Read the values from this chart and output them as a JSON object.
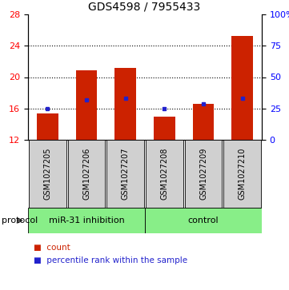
{
  "title": "GDS4598 / 7955433",
  "samples": [
    "GSM1027205",
    "GSM1027206",
    "GSM1027207",
    "GSM1027208",
    "GSM1027209",
    "GSM1027210"
  ],
  "count_values": [
    15.4,
    20.85,
    21.2,
    15.0,
    16.55,
    25.2
  ],
  "percentile_values": [
    16.0,
    17.05,
    17.3,
    15.95,
    16.55,
    17.3
  ],
  "bar_bottom": 12,
  "ylim_left": [
    12,
    28
  ],
  "ylim_right": [
    0,
    100
  ],
  "yticks_left": [
    12,
    16,
    20,
    24,
    28
  ],
  "yticks_right": [
    0,
    25,
    50,
    75,
    100
  ],
  "ytick_labels_right": [
    "0",
    "25",
    "50",
    "75",
    "100%"
  ],
  "bar_color": "#cc2200",
  "dot_color": "#2222cc",
  "gridline_y": [
    16,
    20,
    24
  ],
  "group1_label": "miR-31 inhibition",
  "group2_label": "control",
  "group_color": "#88ee88",
  "sample_box_color": "#d0d0d0",
  "protocol_label": "protocol",
  "legend_count_label": "count",
  "legend_percentile_label": "percentile rank within the sample",
  "title_fontsize": 10,
  "tick_fontsize": 8,
  "sample_fontsize": 7,
  "legend_fontsize": 7.5,
  "group_fontsize": 8
}
